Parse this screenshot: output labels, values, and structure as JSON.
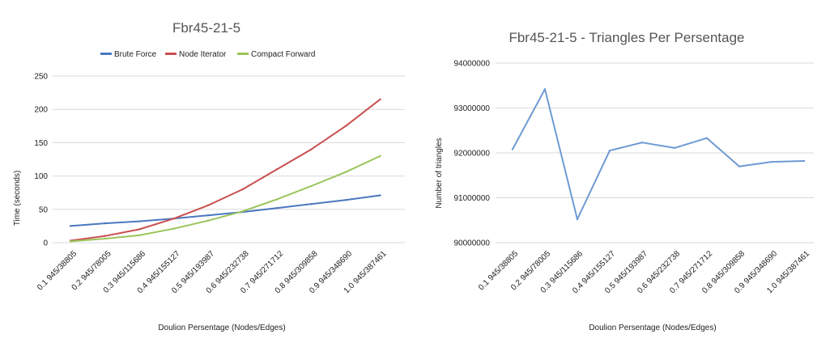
{
  "chart_data": [
    {
      "type": "line",
      "title": "Fbr45-21-5",
      "xlabel": "Doulion Persentage (Nodes/Edges)",
      "ylabel": "Time (seconds)",
      "categories": [
        "0.1 945/38805",
        "0.2 945/78005",
        "0.3 945/115686",
        "0.4 945/155127",
        "0.5 945/193987",
        "0.6 945/232738",
        "0.7 945/271712",
        "0.8 945/309858",
        "0.9 945/348690",
        "1.0 945/387461"
      ],
      "ylim": [
        0,
        250
      ],
      "yticks": [
        0,
        50,
        100,
        150,
        200,
        250
      ],
      "grid": true,
      "legend": "top",
      "series": [
        {
          "name": "Brute Force",
          "color": "#4a78c0",
          "values": [
            25,
            29,
            32,
            36,
            41,
            46,
            52,
            58,
            64,
            71
          ]
        },
        {
          "name": "Node Iterator",
          "color": "#c94f4f",
          "values": [
            3,
            10,
            20,
            36,
            56,
            80,
            110,
            140,
            175,
            215
          ]
        },
        {
          "name": "Compact Forward",
          "color": "#9bc45a",
          "values": [
            2,
            6,
            11,
            21,
            33,
            47,
            65,
            85,
            106,
            130
          ]
        }
      ]
    },
    {
      "type": "line",
      "title": "Fbr45-21-5 - Triangles Per Persentage",
      "xlabel": "Doulion Persentage (Nodes/Edges)",
      "ylabel": "Number of triangles",
      "categories": [
        "0.1 945/38805",
        "0.2 945/78005",
        "0.3 945/115686",
        "0.4 945/155127",
        "0.5 945/193987",
        "0.6 945/232738",
        "0.7 945/271712",
        "0.8 945/309858",
        "0.9 945/348690",
        "1.0 945/387461"
      ],
      "ylim": [
        90000000,
        94000000
      ],
      "yticks": [
        90000000,
        91000000,
        92000000,
        93000000,
        94000000
      ],
      "grid": true,
      "series": [
        {
          "color": "#6f9ad3",
          "values": [
            92080000,
            93420000,
            90520000,
            92050000,
            92230000,
            92110000,
            92330000,
            91700000,
            91800000,
            91820000
          ]
        }
      ]
    }
  ]
}
